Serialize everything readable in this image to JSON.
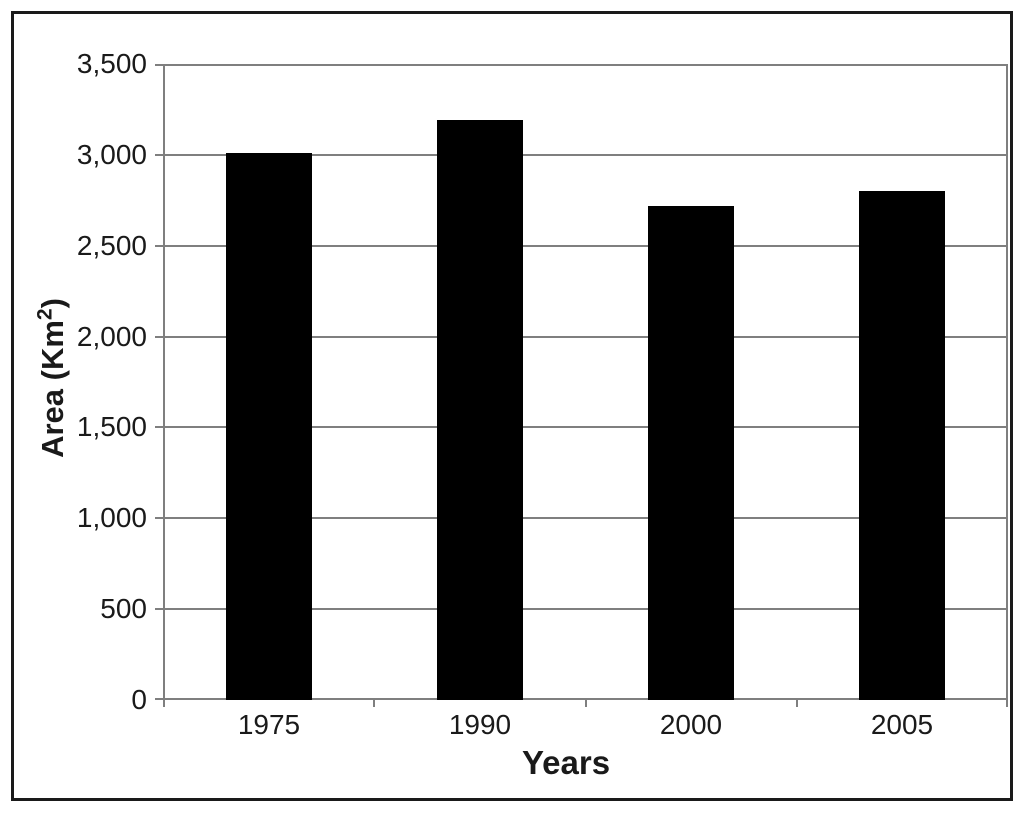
{
  "figure": {
    "background": "#ffffff",
    "border_color": "#1a1a1a"
  },
  "chart_data": {
    "type": "bar",
    "title": "",
    "categories": [
      "1975",
      "1990",
      "2000",
      "2005"
    ],
    "values": [
      3010,
      3190,
      2720,
      2800
    ],
    "xlabel": "Years",
    "ylabel": "Area (Km²)",
    "ylabel_parts": {
      "prefix": "Area (Km",
      "superscript": "2",
      "suffix": ")"
    },
    "ylim": [
      0,
      3500
    ],
    "ytick_step": 500,
    "ytick_labels": [
      "3,500",
      "3,000",
      "2,500",
      "2,000",
      "1,500",
      "1,000",
      "500",
      "0"
    ],
    "grid": true,
    "legend": false,
    "bar_color": "#000000",
    "grid_color": "#7f7f7f",
    "axis_color": "#7f7f7f",
    "text_color": "#1a1a1a"
  }
}
